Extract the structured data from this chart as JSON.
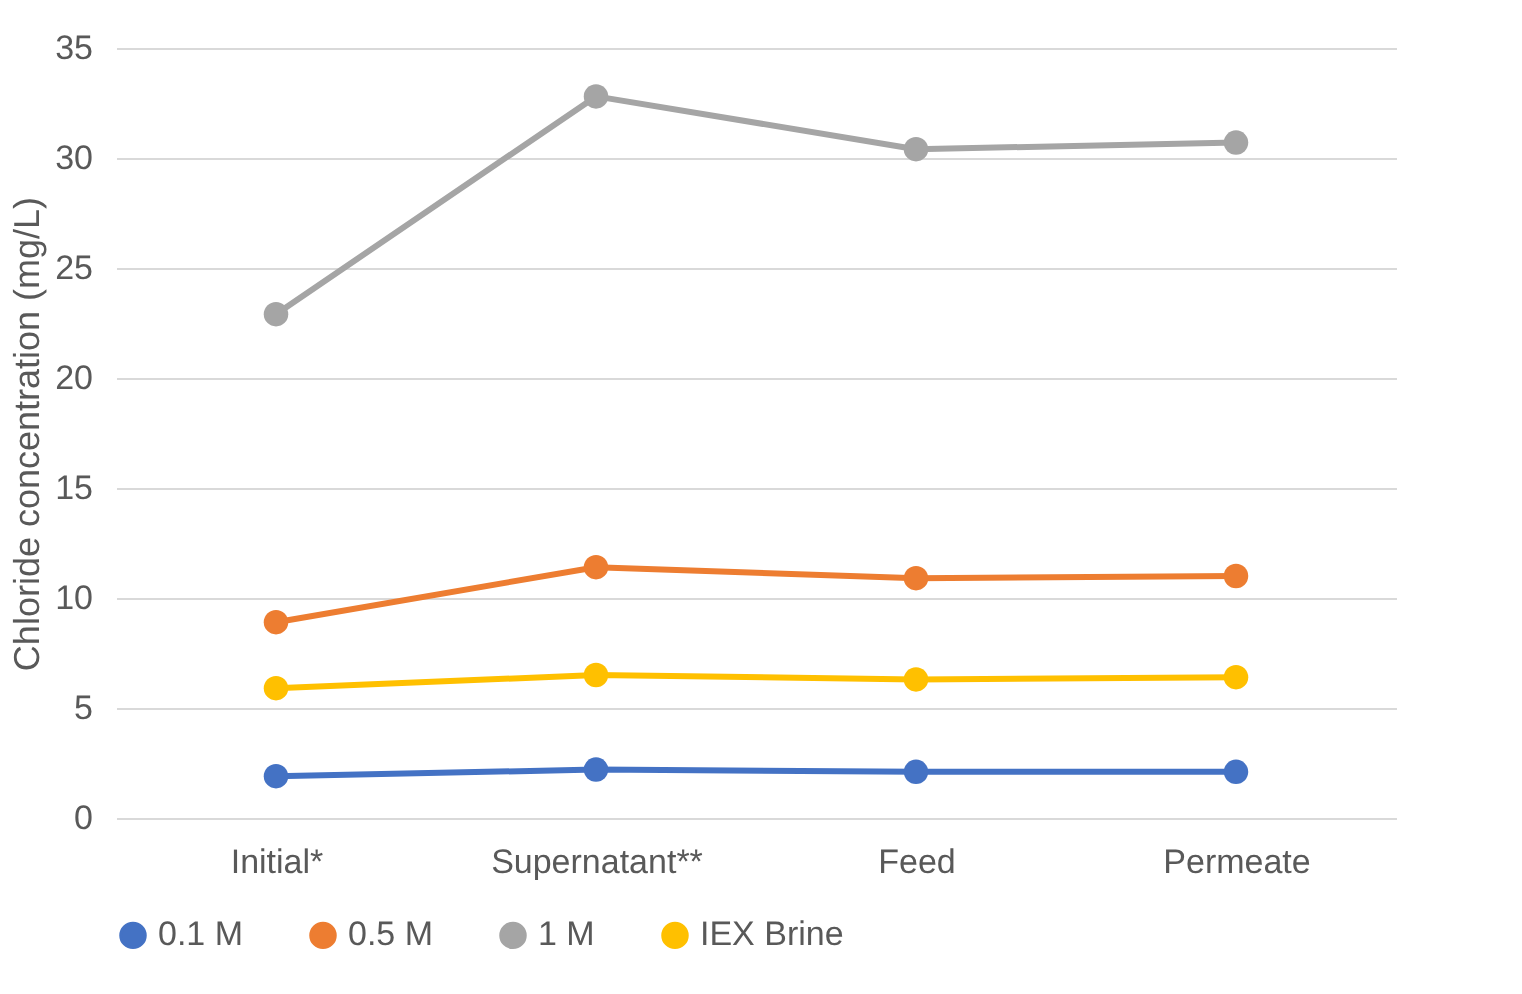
{
  "chart_data": {
    "type": "line",
    "ylabel": "Chloride concentration (mg/L)",
    "categories": [
      "Initial*",
      "Supernatant**",
      "Feed",
      "Permeate"
    ],
    "series": [
      {
        "name": "0.1 M",
        "color": "#4472c4",
        "values": [
          1.9,
          2.2,
          2.1,
          2.1
        ]
      },
      {
        "name": "0.5 M",
        "color": "#ed7d31",
        "values": [
          8.9,
          11.4,
          10.9,
          11.0
        ]
      },
      {
        "name": "1 M",
        "color": "#a5a5a5",
        "values": [
          22.9,
          32.8,
          30.4,
          30.7
        ]
      },
      {
        "name": "IEX Brine",
        "color": "#ffc000",
        "values": [
          5.9,
          6.5,
          6.3,
          6.4
        ]
      }
    ],
    "ylim": [
      0,
      35
    ],
    "yticks": [
      0,
      5,
      10,
      15,
      20,
      25,
      30,
      35
    ],
    "grid": "y",
    "legend": "bottom",
    "marker": "circle"
  }
}
